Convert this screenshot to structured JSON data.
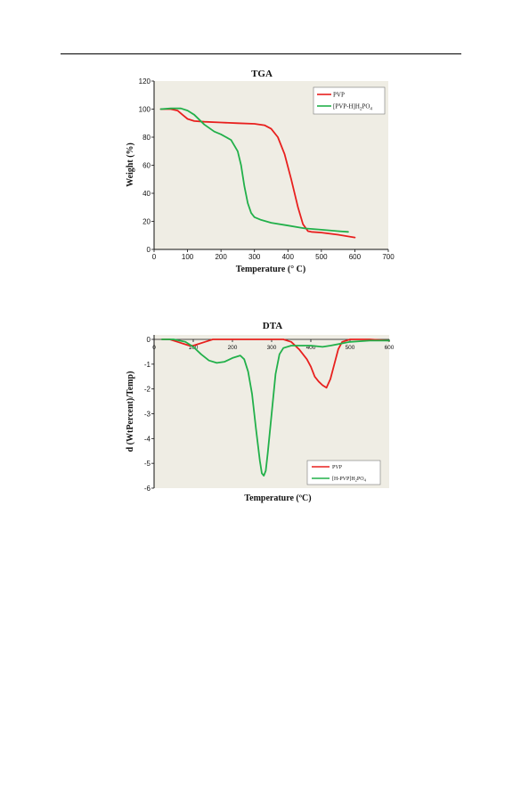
{
  "chart_data": [
    {
      "type": "line",
      "title": "TGA",
      "xlabel": "Temperature  (° C)",
      "ylabel": "Weight  (%)",
      "xlim": [
        0,
        700
      ],
      "ylim": [
        0,
        120
      ],
      "xticks": [
        "0",
        "100",
        "200",
        "300",
        "400",
        "500",
        "600",
        "700"
      ],
      "yticks": [
        "0",
        "20",
        "40",
        "60",
        "80",
        "100",
        "120"
      ],
      "legend_position": "top-right",
      "grid": false,
      "series": [
        {
          "name": "PVP",
          "color": "#e8201e",
          "x": [
            20,
            50,
            70,
            85,
            100,
            120,
            150,
            200,
            250,
            300,
            330,
            350,
            370,
            390,
            410,
            430,
            445,
            460,
            470,
            500,
            550,
            600
          ],
          "y": [
            100,
            100,
            99,
            96,
            93,
            91.5,
            91,
            90.5,
            90,
            89.5,
            88.5,
            86,
            80,
            68,
            50,
            30,
            18,
            13,
            12.5,
            12,
            10.5,
            8.5
          ]
        },
        {
          "name": "[PVP-H]H2PO4",
          "name_main": "[PVP-H]H",
          "name_sub1": "2",
          "name_mid": "PO",
          "name_sub2": "4",
          "color": "#22b04a",
          "x": [
            20,
            50,
            80,
            100,
            120,
            150,
            180,
            200,
            230,
            250,
            260,
            270,
            280,
            290,
            300,
            320,
            350,
            400,
            450,
            500,
            550,
            580
          ],
          "y": [
            100,
            100.5,
            100.5,
            99,
            96,
            89,
            84,
            82,
            78,
            70,
            60,
            45,
            33,
            26,
            23,
            21,
            19,
            17,
            15,
            14,
            13,
            12.5
          ]
        }
      ]
    },
    {
      "type": "line",
      "title": "DTA",
      "xlabel": "Temperature (ºC)",
      "ylabel": "d (WtPercent)/Temp)",
      "xlim": [
        0,
        600
      ],
      "ylim": [
        -6,
        0
      ],
      "xticks": [
        "0",
        "100",
        "200",
        "300",
        "400",
        "500",
        "600"
      ],
      "yticks": [
        "0",
        "-1",
        "-2",
        "-3",
        "-4",
        "-5",
        "-6"
      ],
      "legend_position": "bottom-right",
      "grid": false,
      "series": [
        {
          "name": "PVP",
          "color": "#e8201e",
          "x": [
            20,
            40,
            60,
            80,
            90,
            100,
            110,
            130,
            150,
            200,
            250,
            300,
            330,
            350,
            370,
            390,
            400,
            410,
            420,
            430,
            440,
            450,
            460,
            470,
            480,
            500,
            550,
            600
          ],
          "y": [
            0,
            0,
            -0.1,
            -0.2,
            -0.25,
            -0.25,
            -0.2,
            -0.1,
            0,
            0,
            0,
            0,
            0,
            -0.1,
            -0.4,
            -0.8,
            -1.1,
            -1.5,
            -1.7,
            -1.85,
            -1.95,
            -1.6,
            -1.0,
            -0.4,
            -0.1,
            0,
            0,
            -0.05
          ]
        },
        {
          "name": "[H-PVP]H2PO4",
          "name_main": "[H-PVP]H",
          "name_sub1": "2",
          "name_mid": "PO",
          "name_sub2": "4",
          "color": "#22b04a",
          "x": [
            20,
            50,
            80,
            100,
            120,
            140,
            160,
            180,
            200,
            220,
            230,
            240,
            250,
            260,
            270,
            275,
            280,
            285,
            290,
            300,
            310,
            320,
            330,
            350,
            400,
            430,
            450,
            500,
            550,
            600
          ],
          "y": [
            0,
            0,
            -0.1,
            -0.3,
            -0.6,
            -0.85,
            -0.95,
            -0.9,
            -0.75,
            -0.65,
            -0.8,
            -1.3,
            -2.2,
            -3.6,
            -4.9,
            -5.4,
            -5.5,
            -5.3,
            -4.6,
            -3.0,
            -1.4,
            -0.6,
            -0.35,
            -0.25,
            -0.25,
            -0.3,
            -0.25,
            -0.1,
            -0.05,
            -0.05
          ]
        }
      ]
    }
  ]
}
